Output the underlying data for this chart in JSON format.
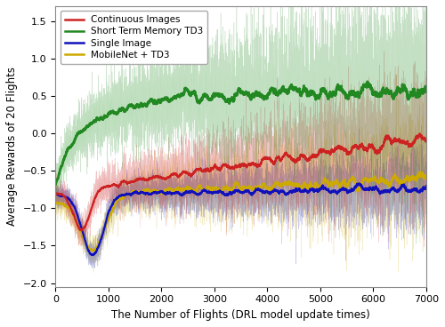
{
  "xlabel": "The Number of Flights (DRL model update times)",
  "ylabel": "Average Rewards of 20 Flights",
  "xlim": [
    0,
    7000
  ],
  "ylim": [
    -2.05,
    1.7
  ],
  "yticks": [
    -2.0,
    -1.5,
    -1.0,
    -0.5,
    0.0,
    0.5,
    1.0,
    1.5
  ],
  "xticks": [
    0,
    1000,
    2000,
    3000,
    4000,
    5000,
    6000,
    7000
  ],
  "legend_labels": [
    "Continuous Images",
    "Short Term Memory TD3",
    "Single Image",
    "MobileNet + TD3"
  ],
  "line_colors": [
    "#cc2222",
    "#228822",
    "#1111bb",
    "#ccaa00"
  ],
  "fill_colors": [
    "#ee9999",
    "#99ee99",
    "#aaccee",
    "#eedd88"
  ],
  "seed": 12345,
  "n_points": 7000,
  "figsize": [
    5.0,
    3.68
  ],
  "dpi": 100
}
